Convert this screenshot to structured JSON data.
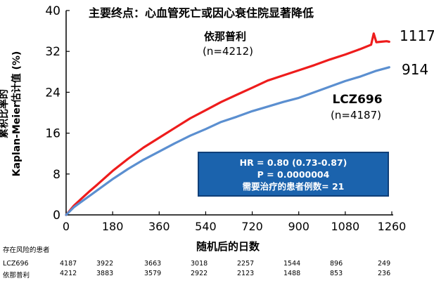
{
  "chart_data": {
    "type": "line",
    "title": "主要终点：心血管死亡或因心衰住院显著降低",
    "xlabel": "随机后的日数",
    "ylabel": [
      "累积比率的",
      "Kaplan-Meier估计值 (%)"
    ],
    "xlim": [
      0,
      1260
    ],
    "ylim": [
      0,
      40
    ],
    "xticks": [
      0,
      180,
      360,
      540,
      720,
      900,
      1080,
      1260
    ],
    "yticks": [
      0,
      8,
      16,
      24,
      32,
      40
    ],
    "series": [
      {
        "name": "依那普利",
        "color": "#ee1c1c",
        "x": [
          0,
          30,
          60,
          90,
          120,
          180,
          240,
          300,
          360,
          420,
          480,
          540,
          600,
          660,
          720,
          780,
          840,
          900,
          960,
          1020,
          1080,
          1140,
          1180,
          1190,
          1200,
          1220,
          1240,
          1250
        ],
        "y": [
          0,
          1.8,
          3.2,
          4.6,
          5.9,
          8.6,
          11.0,
          13.2,
          15.1,
          17.0,
          18.9,
          20.5,
          22.1,
          23.5,
          24.9,
          26.3,
          27.3,
          28.3,
          29.3,
          30.4,
          31.4,
          32.5,
          33.3,
          35.5,
          33.8,
          33.9,
          34.0,
          33.9
        ]
      },
      {
        "name": "LCZ696",
        "color": "#5b8fd0",
        "x": [
          0,
          30,
          60,
          90,
          120,
          180,
          240,
          300,
          360,
          420,
          480,
          540,
          600,
          660,
          720,
          780,
          840,
          900,
          960,
          1020,
          1080,
          1140,
          1200,
          1250
        ],
        "y": [
          0,
          1.5,
          2.6,
          3.7,
          4.8,
          7.0,
          9.0,
          10.8,
          12.4,
          14.0,
          15.5,
          16.8,
          18.2,
          19.2,
          20.3,
          21.2,
          22.1,
          22.9,
          24.0,
          25.1,
          26.2,
          27.1,
          28.2,
          28.9
        ]
      }
    ],
    "end_labels": [
      "1117",
      "914"
    ],
    "annotations": {
      "enalapril_name": "依那普利",
      "enalapril_n": "(n=4212)",
      "lcz_name": "LCZ696",
      "lcz_n": "(n=4187)"
    },
    "hr_box": {
      "line1": "HR = 0.80 (0.73-0.87)",
      "line2": "P = 0.0000004",
      "line3": "需要治疗的患者例数= 21",
      "fill": "#1b63ad"
    },
    "at_risk": {
      "title": "存在风险的患者",
      "rows": [
        {
          "label": "LCZ696",
          "values": [
            "4187",
            "3922",
            "3663",
            "3018",
            "2257",
            "1544",
            "896",
            "249"
          ]
        },
        {
          "label": "依那普利",
          "values": [
            "4212",
            "3883",
            "3579",
            "2922",
            "2123",
            "1488",
            "853",
            "236"
          ]
        }
      ]
    }
  }
}
